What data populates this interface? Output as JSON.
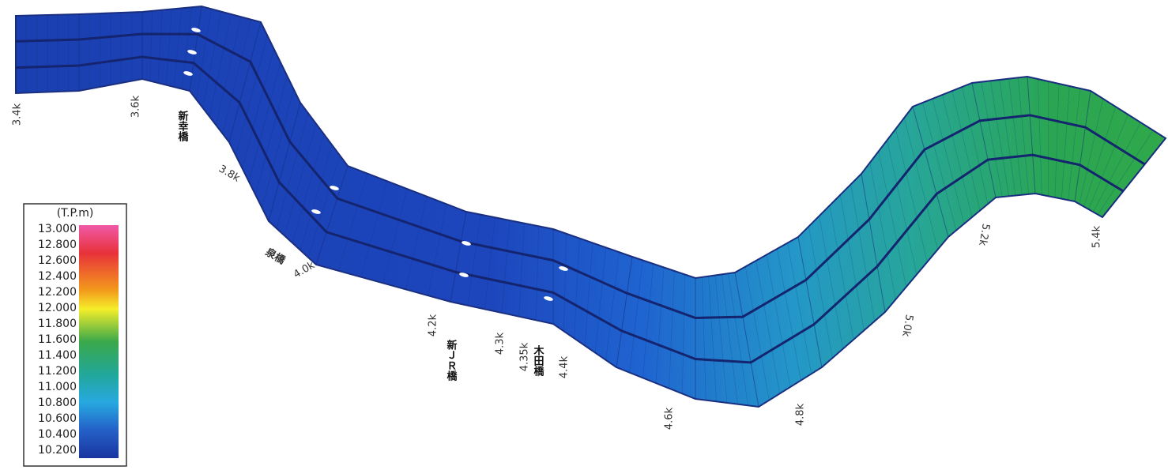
{
  "distance_labels": [
    "3.4k",
    "3.6k",
    "3.8k",
    "4.0k",
    "4.2k",
    "4.3k",
    "4.35k",
    "4.4k",
    "4.6k",
    "4.8k",
    "5.0k",
    "5.2k",
    "5.4k"
  ],
  "bridges": [
    "新幸橋",
    "泉橋",
    "新ＪＲ橋",
    "木田橋"
  ],
  "legend": {
    "title": "(T.P.m)",
    "ticks": [
      "13.000",
      "12.800",
      "12.600",
      "12.400",
      "12.200",
      "12.000",
      "11.800",
      "11.600",
      "11.400",
      "11.200",
      "11.000",
      "10.800",
      "10.600",
      "10.400",
      "10.200"
    ]
  }
}
